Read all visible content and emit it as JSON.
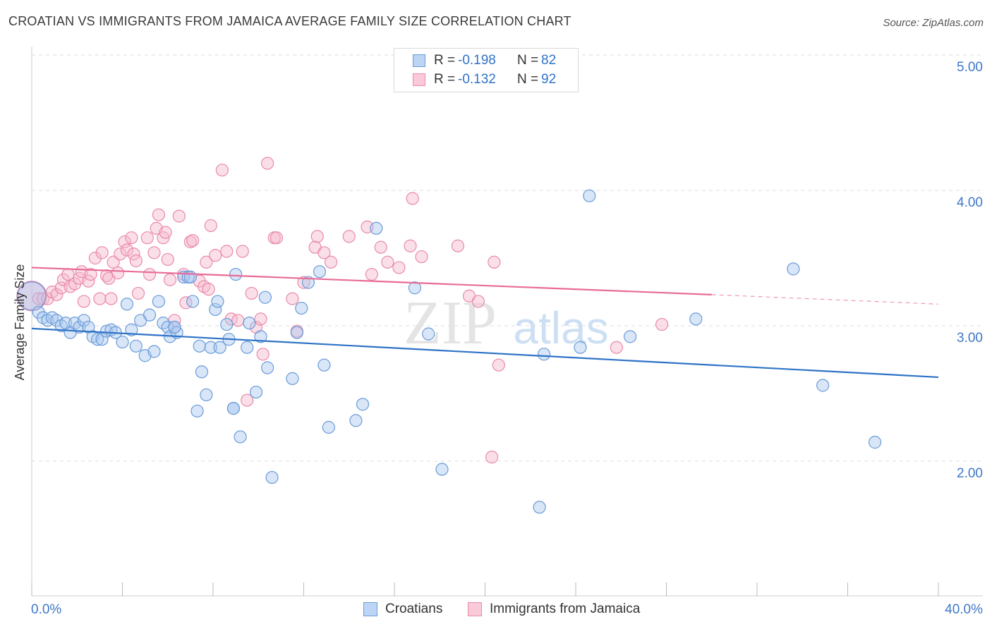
{
  "header": {
    "title": "CROATIAN VS IMMIGRANTS FROM JAMAICA AVERAGE FAMILY SIZE CORRELATION CHART",
    "source": "Source: ZipAtlas.com"
  },
  "colors": {
    "blue_fill": "#a9c8f0",
    "blue_stroke": "#6b9bd8",
    "blue_line": "#2f73c6",
    "pink_fill": "#f7b8cb",
    "pink_stroke": "#e88aaa",
    "pink_line": "#e86b97",
    "axis_text": "#3f78c9",
    "grid": "#dddddd"
  },
  "legend": {
    "rows": [
      {
        "r_label": "R =",
        "r_value": "-0.198",
        "n_label": "N =",
        "n_value": "82"
      },
      {
        "r_label": "R =",
        "r_value": "-0.132",
        "n_label": "N =",
        "n_value": "92"
      }
    ]
  },
  "bottom_legend": {
    "series_a": "Croatians",
    "series_b": "Immigrants from Jamaica"
  },
  "watermark": {
    "zip": "ZIP",
    "atlas": "atlas"
  },
  "chart_data": {
    "type": "scatter",
    "title": "CROATIAN VS IMMIGRANTS FROM JAMAICA AVERAGE FAMILY SIZE CORRELATION CHART",
    "xlabel": "",
    "ylabel": "Average Family Size",
    "xlim": [
      0,
      40
    ],
    "ylim": [
      1.0,
      5.1
    ],
    "x_tick_labels": [
      "0.0%",
      "40.0%"
    ],
    "y_ticks": [
      2.0,
      3.0,
      4.0,
      5.0
    ],
    "y_tick_labels": [
      "2.00",
      "3.00",
      "4.00",
      "5.00"
    ],
    "grid": true,
    "series": [
      {
        "name": "Croatians",
        "trend": {
          "x": [
            0,
            40
          ],
          "y": [
            2.98,
            2.62
          ]
        },
        "points": [
          {
            "x": 0.0,
            "y": 3.22,
            "big": true
          },
          {
            "x": 0.3,
            "y": 3.1
          },
          {
            "x": 0.5,
            "y": 3.06
          },
          {
            "x": 0.7,
            "y": 3.04
          },
          {
            "x": 0.9,
            "y": 3.06
          },
          {
            "x": 1.1,
            "y": 3.04
          },
          {
            "x": 1.3,
            "y": 3.0
          },
          {
            "x": 1.5,
            "y": 3.02
          },
          {
            "x": 1.7,
            "y": 2.95
          },
          {
            "x": 1.9,
            "y": 3.02
          },
          {
            "x": 2.1,
            "y": 2.99
          },
          {
            "x": 2.3,
            "y": 3.04
          },
          {
            "x": 2.5,
            "y": 2.99
          },
          {
            "x": 2.7,
            "y": 2.92
          },
          {
            "x": 2.9,
            "y": 2.9
          },
          {
            "x": 3.1,
            "y": 2.9
          },
          {
            "x": 3.3,
            "y": 2.96
          },
          {
            "x": 3.5,
            "y": 2.97
          },
          {
            "x": 3.7,
            "y": 2.95
          },
          {
            "x": 4.0,
            "y": 2.88
          },
          {
            "x": 4.2,
            "y": 3.16
          },
          {
            "x": 4.4,
            "y": 2.97
          },
          {
            "x": 4.6,
            "y": 2.85
          },
          {
            "x": 4.8,
            "y": 3.04
          },
          {
            "x": 5.0,
            "y": 2.78
          },
          {
            "x": 5.2,
            "y": 3.08
          },
          {
            "x": 5.4,
            "y": 2.81
          },
          {
            "x": 5.6,
            "y": 3.18
          },
          {
            "x": 5.8,
            "y": 3.02
          },
          {
            "x": 6.0,
            "y": 2.99
          },
          {
            "x": 6.1,
            "y": 2.92
          },
          {
            "x": 6.3,
            "y": 2.99
          },
          {
            "x": 6.4,
            "y": 2.95
          },
          {
            "x": 6.3,
            "y": 2.99
          },
          {
            "x": 6.7,
            "y": 3.36
          },
          {
            "x": 6.9,
            "y": 3.36
          },
          {
            "x": 7.1,
            "y": 3.18
          },
          {
            "x": 7.0,
            "y": 3.36
          },
          {
            "x": 7.4,
            "y": 2.85
          },
          {
            "x": 7.5,
            "y": 2.66
          },
          {
            "x": 7.7,
            "y": 2.49
          },
          {
            "x": 7.3,
            "y": 2.37
          },
          {
            "x": 7.9,
            "y": 2.84
          },
          {
            "x": 8.1,
            "y": 3.12
          },
          {
            "x": 8.2,
            "y": 3.18
          },
          {
            "x": 8.3,
            "y": 2.84
          },
          {
            "x": 8.6,
            "y": 3.01
          },
          {
            "x": 8.7,
            "y": 2.9
          },
          {
            "x": 8.9,
            "y": 2.39
          },
          {
            "x": 8.9,
            "y": 2.39
          },
          {
            "x": 9.0,
            "y": 3.38
          },
          {
            "x": 9.2,
            "y": 2.18
          },
          {
            "x": 9.5,
            "y": 2.84
          },
          {
            "x": 9.6,
            "y": 3.02
          },
          {
            "x": 9.9,
            "y": 2.51
          },
          {
            "x": 10.1,
            "y": 2.92
          },
          {
            "x": 10.3,
            "y": 3.21
          },
          {
            "x": 10.4,
            "y": 2.69
          },
          {
            "x": 10.6,
            "y": 1.88
          },
          {
            "x": 11.5,
            "y": 2.61
          },
          {
            "x": 11.7,
            "y": 2.95
          },
          {
            "x": 11.9,
            "y": 3.13
          },
          {
            "x": 12.2,
            "y": 3.32
          },
          {
            "x": 12.7,
            "y": 3.4
          },
          {
            "x": 12.9,
            "y": 2.71
          },
          {
            "x": 13.1,
            "y": 2.25
          },
          {
            "x": 14.3,
            "y": 2.3
          },
          {
            "x": 14.6,
            "y": 2.42
          },
          {
            "x": 15.2,
            "y": 3.72
          },
          {
            "x": 16.9,
            "y": 3.28
          },
          {
            "x": 17.5,
            "y": 2.94
          },
          {
            "x": 18.1,
            "y": 1.94
          },
          {
            "x": 22.4,
            "y": 1.66
          },
          {
            "x": 22.6,
            "y": 2.79
          },
          {
            "x": 24.2,
            "y": 2.84
          },
          {
            "x": 24.6,
            "y": 3.96
          },
          {
            "x": 26.4,
            "y": 2.92
          },
          {
            "x": 29.3,
            "y": 3.05
          },
          {
            "x": 33.6,
            "y": 3.42
          },
          {
            "x": 34.9,
            "y": 2.56
          },
          {
            "x": 37.2,
            "y": 2.14
          }
        ]
      },
      {
        "name": "Immigrants from Jamaica",
        "trend": {
          "x": [
            0,
            30
          ],
          "y": [
            3.43,
            3.23
          ]
        },
        "trend_dashed": {
          "x": [
            30,
            40
          ],
          "y": [
            3.23,
            3.16
          ]
        },
        "points": [
          {
            "x": 0.0,
            "y": 3.22,
            "big": true
          },
          {
            "x": 0.3,
            "y": 3.2
          },
          {
            "x": 0.5,
            "y": 3.2
          },
          {
            "x": 0.7,
            "y": 3.2
          },
          {
            "x": 0.9,
            "y": 3.25
          },
          {
            "x": 1.1,
            "y": 3.23
          },
          {
            "x": 1.3,
            "y": 3.28
          },
          {
            "x": 1.4,
            "y": 3.34
          },
          {
            "x": 1.6,
            "y": 3.38
          },
          {
            "x": 1.7,
            "y": 3.29
          },
          {
            "x": 1.9,
            "y": 3.31
          },
          {
            "x": 2.1,
            "y": 3.35
          },
          {
            "x": 2.2,
            "y": 3.4
          },
          {
            "x": 2.3,
            "y": 3.18
          },
          {
            "x": 2.5,
            "y": 3.33
          },
          {
            "x": 2.6,
            "y": 3.38
          },
          {
            "x": 2.8,
            "y": 3.5
          },
          {
            "x": 3.0,
            "y": 3.2
          },
          {
            "x": 3.1,
            "y": 3.54
          },
          {
            "x": 3.3,
            "y": 3.37
          },
          {
            "x": 3.4,
            "y": 3.35
          },
          {
            "x": 3.5,
            "y": 3.2
          },
          {
            "x": 3.6,
            "y": 3.47
          },
          {
            "x": 3.8,
            "y": 3.39
          },
          {
            "x": 3.9,
            "y": 3.53
          },
          {
            "x": 4.1,
            "y": 3.62
          },
          {
            "x": 4.2,
            "y": 3.56
          },
          {
            "x": 4.4,
            "y": 3.65
          },
          {
            "x": 4.5,
            "y": 3.53
          },
          {
            "x": 4.6,
            "y": 3.48
          },
          {
            "x": 4.7,
            "y": 3.24
          },
          {
            "x": 5.1,
            "y": 3.65
          },
          {
            "x": 5.2,
            "y": 3.38
          },
          {
            "x": 5.4,
            "y": 3.54
          },
          {
            "x": 5.5,
            "y": 3.72
          },
          {
            "x": 5.6,
            "y": 3.82
          },
          {
            "x": 5.8,
            "y": 3.65
          },
          {
            "x": 5.9,
            "y": 3.69
          },
          {
            "x": 6.0,
            "y": 3.49
          },
          {
            "x": 6.1,
            "y": 3.34
          },
          {
            "x": 6.3,
            "y": 3.04
          },
          {
            "x": 6.5,
            "y": 3.81
          },
          {
            "x": 6.7,
            "y": 3.38
          },
          {
            "x": 6.8,
            "y": 3.17
          },
          {
            "x": 7.0,
            "y": 3.62
          },
          {
            "x": 7.1,
            "y": 3.63
          },
          {
            "x": 7.4,
            "y": 3.33
          },
          {
            "x": 7.6,
            "y": 3.29
          },
          {
            "x": 7.7,
            "y": 3.47
          },
          {
            "x": 7.8,
            "y": 3.27
          },
          {
            "x": 7.9,
            "y": 3.74
          },
          {
            "x": 8.1,
            "y": 3.52
          },
          {
            "x": 8.4,
            "y": 4.15
          },
          {
            "x": 8.6,
            "y": 3.55
          },
          {
            "x": 8.8,
            "y": 3.05
          },
          {
            "x": 9.1,
            "y": 3.04
          },
          {
            "x": 9.3,
            "y": 3.55
          },
          {
            "x": 9.5,
            "y": 2.45
          },
          {
            "x": 9.7,
            "y": 3.24
          },
          {
            "x": 9.9,
            "y": 2.99
          },
          {
            "x": 10.1,
            "y": 3.05
          },
          {
            "x": 10.2,
            "y": 2.79
          },
          {
            "x": 10.4,
            "y": 4.2
          },
          {
            "x": 10.7,
            "y": 3.65
          },
          {
            "x": 10.8,
            "y": 3.65
          },
          {
            "x": 11.5,
            "y": 3.2
          },
          {
            "x": 11.7,
            "y": 2.96
          },
          {
            "x": 12.0,
            "y": 3.32
          },
          {
            "x": 12.5,
            "y": 3.58
          },
          {
            "x": 12.6,
            "y": 3.66
          },
          {
            "x": 12.9,
            "y": 3.54
          },
          {
            "x": 13.2,
            "y": 3.47
          },
          {
            "x": 14.0,
            "y": 3.66
          },
          {
            "x": 14.8,
            "y": 3.73
          },
          {
            "x": 15.0,
            "y": 3.38
          },
          {
            "x": 15.4,
            "y": 3.58
          },
          {
            "x": 15.7,
            "y": 3.47
          },
          {
            "x": 16.2,
            "y": 3.43
          },
          {
            "x": 16.7,
            "y": 3.59
          },
          {
            "x": 17.2,
            "y": 3.51
          },
          {
            "x": 16.8,
            "y": 3.94
          },
          {
            "x": 18.8,
            "y": 3.59
          },
          {
            "x": 19.3,
            "y": 3.22
          },
          {
            "x": 19.7,
            "y": 3.18
          },
          {
            "x": 20.4,
            "y": 3.47
          },
          {
            "x": 20.6,
            "y": 2.71
          },
          {
            "x": 20.3,
            "y": 2.03
          },
          {
            "x": 25.8,
            "y": 2.84
          },
          {
            "x": 27.8,
            "y": 3.01
          }
        ]
      }
    ]
  }
}
